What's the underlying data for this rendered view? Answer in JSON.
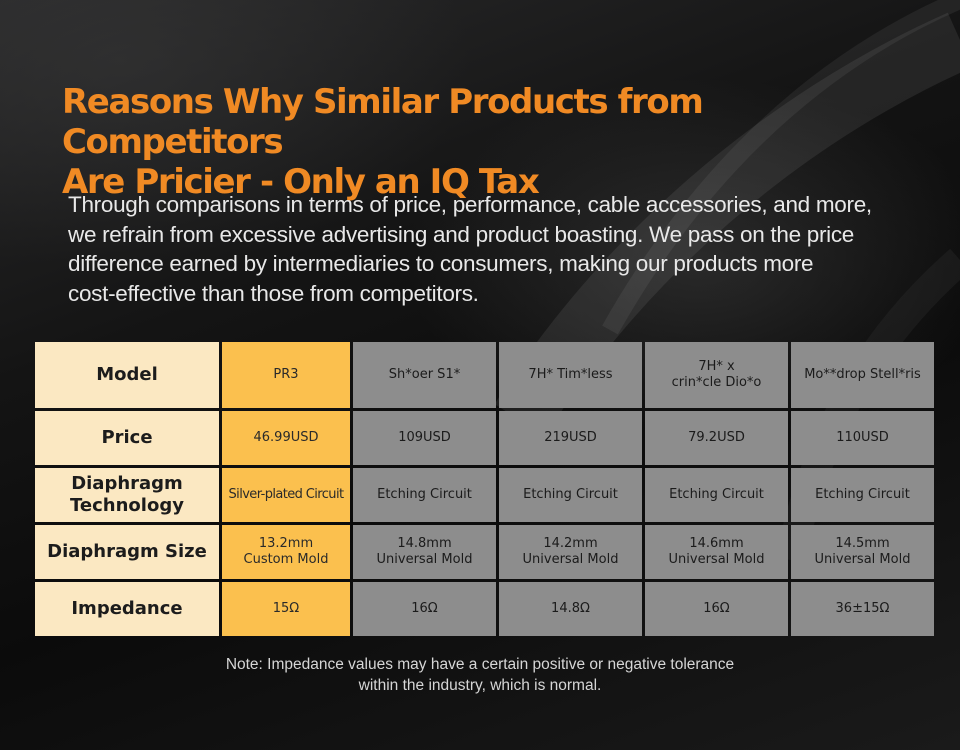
{
  "title": {
    "line1": "Reasons Why Similar Products from Competitors",
    "line2": "Are Pricier - Only an IQ Tax"
  },
  "subtitle": {
    "lines": [
      "Through comparisons in terms of price, performance, cable accessories, and more,",
      "we refrain from excessive advertising and product boasting. We pass on the price",
      "difference earned by intermediaries to consumers, making our products more",
      "cost-effective than those from competitors."
    ]
  },
  "table": {
    "header": {
      "label": "Model",
      "models": [
        "PR3",
        "Sh*oer S1*",
        "7H* Tim*less",
        "7H* x crin*cle Dio*o",
        "Mo**drop Stell*ris"
      ],
      "model4_line1": "7H* x",
      "model4_line2": "crin*cle Dio*o"
    },
    "rows": [
      {
        "label": "Price",
        "values": [
          "46.99USD",
          "109USD",
          "219USD",
          "79.2USD",
          "110USD"
        ]
      },
      {
        "label_line1": "Diaphragm",
        "label_line2": "Technology",
        "values": [
          "Silver-plated Circuit",
          "Etching Circuit",
          "Etching Circuit",
          "Etching Circuit",
          "Etching Circuit"
        ]
      },
      {
        "label": "Diaphragm Size",
        "sizes": [
          "13.2mm",
          "14.8mm",
          "14.2mm",
          "14.6mm",
          "14.5mm"
        ],
        "molds": [
          "Custom Mold",
          "Universal Mold",
          "Universal Mold",
          "Universal Mold",
          "Universal Mold"
        ]
      },
      {
        "label": "Impedance",
        "values": [
          "15Ω",
          "16Ω",
          "14.8Ω",
          "16Ω",
          "36±15Ω"
        ]
      }
    ]
  },
  "note": {
    "line1": "Note: Impedance values may have a certain positive or negative tolerance",
    "line2": "within the industry, which is normal."
  },
  "colors": {
    "title": "#f08a24",
    "row_header_bg": "#fbe8c2",
    "highlight_bg": "#fbc04e",
    "competitor_bg": "#8d8d8d"
  }
}
